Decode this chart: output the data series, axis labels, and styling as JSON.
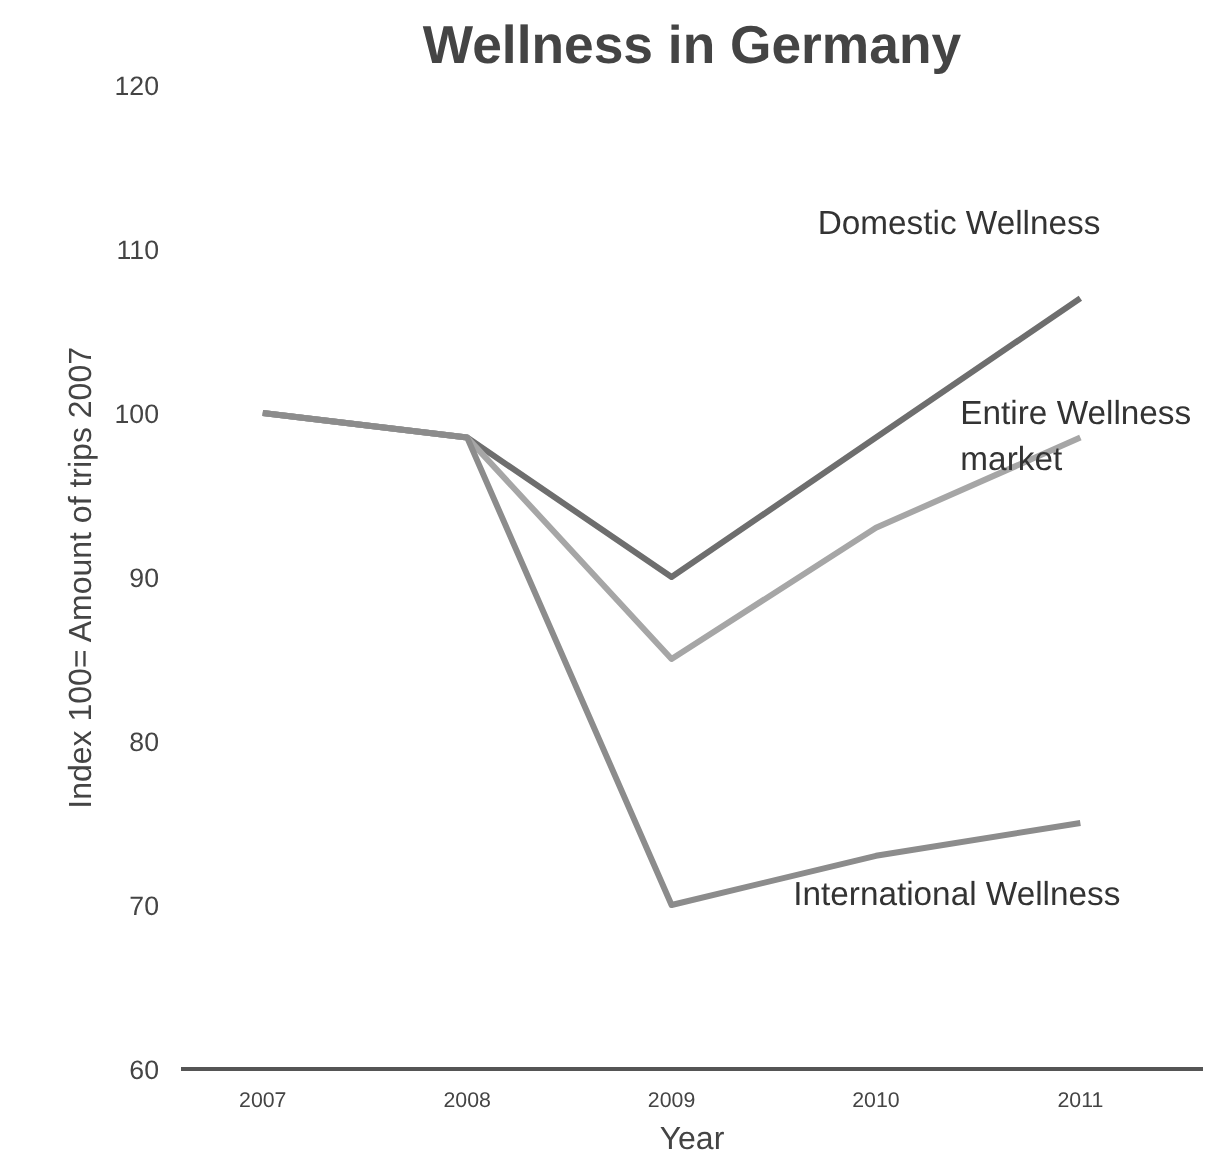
{
  "chart_data": {
    "type": "line",
    "title": "Wellness in Germany",
    "xlabel": "Year",
    "ylabel": "Index 100= Amount of trips 2007",
    "x": [
      2007,
      2008,
      2009,
      2010,
      2011
    ],
    "series": [
      {
        "name": "Domestic Wellness",
        "color": "#6e6e6e",
        "values": [
          100,
          98.5,
          90,
          98.5,
          107
        ]
      },
      {
        "name": "Entire Wellness market",
        "color": "#a6a6a6",
        "values": [
          100,
          98.5,
          85,
          93,
          98.5
        ]
      },
      {
        "name": "International Wellness",
        "color": "#8c8c8c",
        "values": [
          100,
          98.5,
          70,
          73,
          75
        ]
      }
    ],
    "xlim": [
      2006.6,
      2011.6
    ],
    "ylim": [
      60,
      120
    ],
    "xticks": [
      2007,
      2008,
      2009,
      2010,
      2011
    ],
    "yticks": [
      60,
      70,
      80,
      90,
      100,
      110,
      120
    ],
    "grid": false,
    "marker": "none",
    "line_style": "solid"
  }
}
